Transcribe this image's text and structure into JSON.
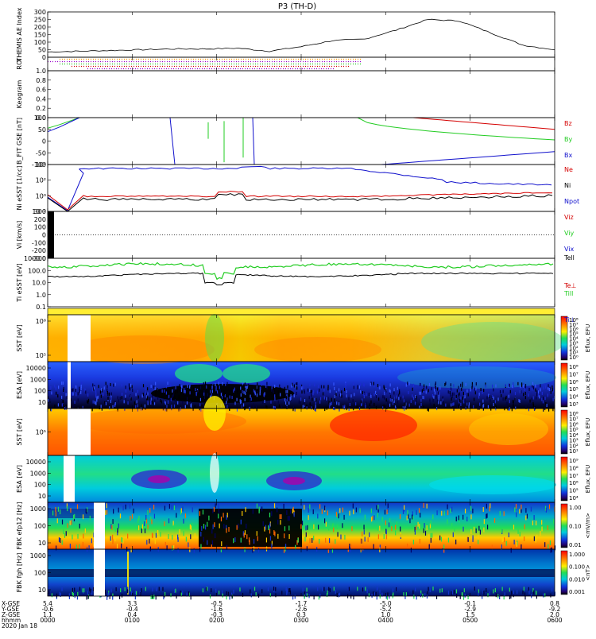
{
  "title": "P3 (TH-D)",
  "colors": {
    "red": "#d40000",
    "green": "#22cc22",
    "blue": "#1010cc",
    "black": "#000000",
    "orange": "#ff9900",
    "purple": "#9900cc",
    "cyan": "#00bcd4"
  },
  "chart_data": [
    {
      "type": "line",
      "panel": "ae",
      "ylabel": "THEMIS AE Index",
      "ylim": [
        0,
        300
      ],
      "yticks": [
        "0",
        "50",
        "100",
        "150",
        "200",
        "250",
        "300"
      ],
      "x": [
        "00:00",
        "00:30",
        "01:00",
        "01:30",
        "02:00",
        "02:30",
        "03:00",
        "03:30",
        "04:00",
        "04:15",
        "04:30",
        "04:45",
        "05:00",
        "05:15",
        "05:30",
        "05:45",
        "06:00"
      ],
      "series": [
        {
          "values": [
            35,
            40,
            45,
            50,
            55,
            55,
            60,
            40,
            70,
            110,
            120,
            180,
            250,
            240,
            160,
            80,
            50
          ]
        }
      ]
    },
    {
      "type": "bar",
      "panel": "roi",
      "ylabel": "ROI"
    },
    {
      "type": "line",
      "panel": "keogram",
      "ylabel": "Keogram",
      "ylim": [
        0,
        1
      ],
      "yticks": [
        "0.0",
        "0.2",
        "0.4",
        "0.6",
        "0.8",
        "1.0"
      ]
    },
    {
      "type": "line",
      "panel": "bfield",
      "ylabel": "B_FIT GSE [nT]",
      "ylim": [
        -100,
        100
      ],
      "yticks": [
        "-100",
        "-50",
        "0",
        "50",
        "100"
      ],
      "legend": [
        "Bz",
        "By",
        "Bx"
      ]
    },
    {
      "type": "line",
      "panel": "density",
      "ylabel": "Ni eSST [1/cc]",
      "yticks": [
        "10⁻²",
        "10⁰",
        "10²",
        "10⁴"
      ],
      "legend": [
        "Ne",
        "Ni",
        "Npot"
      ]
    },
    {
      "type": "line",
      "panel": "velocity",
      "ylabel": "Vi [km/s]",
      "ylim": [
        -300,
        300
      ],
      "yticks": [
        "-300",
        "-200",
        "-100",
        "0",
        "100",
        "200",
        "300"
      ],
      "legend": [
        "Viz",
        "Viy",
        "Vix"
      ]
    },
    {
      "type": "line",
      "panel": "temperature",
      "ylabel": "Ti eSST [eV]",
      "yticks": [
        "0.1",
        "1.0",
        "10.0",
        "100.0",
        "1000.0"
      ],
      "legend": [
        "Tell",
        "Te⊥",
        "Till",
        "Ti⊥"
      ]
    },
    {
      "type": "heatmap",
      "panel": "sst-ion",
      "ylabel": "SST [eV]",
      "yticks": [
        "10⁶",
        "10⁵"
      ],
      "colorbar_label": "Eflux, EFU",
      "colorbar_ticks": [
        "10⁸",
        "10⁷",
        "10⁶",
        "10⁵",
        "10⁴",
        "10³",
        "10²",
        "10¹",
        "10⁰"
      ]
    },
    {
      "type": "heatmap",
      "panel": "esa-ion",
      "ylabel": "ESA [eV]",
      "yticks": [
        "10000",
        "1000",
        "100",
        "10"
      ],
      "colorbar_label": "Eflux, EFU",
      "colorbar_ticks": [
        "10⁸",
        "10⁷",
        "10⁶",
        "10⁵",
        "10⁴",
        "10³"
      ]
    },
    {
      "type": "heatmap",
      "panel": "sst-elec",
      "ylabel": "SST [eV]",
      "yticks": [
        "10⁵"
      ],
      "colorbar_label": "Eflux, EFU",
      "colorbar_ticks": [
        "10⁸",
        "10⁷",
        "10⁶",
        "10⁵",
        "10⁴",
        "10³",
        "10²",
        "10¹"
      ]
    },
    {
      "type": "heatmap",
      "panel": "esa-elec",
      "ylabel": "ESA [eV]",
      "yticks": [
        "10000",
        "1000",
        "100",
        "10"
      ],
      "colorbar_label": "Eflux, EFU",
      "colorbar_ticks": [
        "10⁹",
        "10⁸",
        "10⁷",
        "10⁶",
        "10⁵",
        "10⁴"
      ]
    },
    {
      "type": "heatmap",
      "panel": "fbk-e",
      "ylabel": "FBK efp12 [Hz]",
      "yticks": [
        "1000",
        "100",
        "10"
      ],
      "colorbar_label": "<mV/m>",
      "colorbar_ticks": [
        "1.00",
        "0.10",
        "0.01"
      ]
    },
    {
      "type": "heatmap",
      "panel": "fbk-b",
      "ylabel": "FBK fgh [Hz]",
      "yticks": [
        "1000",
        "100",
        "10"
      ],
      "colorbar_label": "<nT>",
      "colorbar_ticks": [
        "1.000",
        "0.100",
        "0.010",
        "0.001"
      ]
    }
  ],
  "xaxis": {
    "row_labels": [
      "X-GSE",
      "Y-GSE",
      "Z-GSE",
      "hhmm",
      "2020 Jan 18"
    ],
    "columns": [
      {
        "x": "5.4",
        "y": "-0.6",
        "z": "1.1",
        "t": "0000"
      },
      {
        "x": "3.3",
        "y": "-0.4",
        "z": "0.4",
        "t": "0100"
      },
      {
        "x": "-0.5",
        "y": "-1.6",
        "z": "-0.3",
        "t": "0200"
      },
      {
        "x": "-1.7",
        "y": "-2.6",
        "z": "0.3",
        "t": "0300"
      },
      {
        "x": "-5.0",
        "y": "-5.2",
        "z": "1.0",
        "t": "0400"
      },
      {
        "x": "-0.1",
        "y": "-2.9",
        "z": "1.5",
        "t": "0500"
      },
      {
        "x": "0.8",
        "y": "-9.2",
        "z": "2.0",
        "t": "0600"
      }
    ]
  }
}
